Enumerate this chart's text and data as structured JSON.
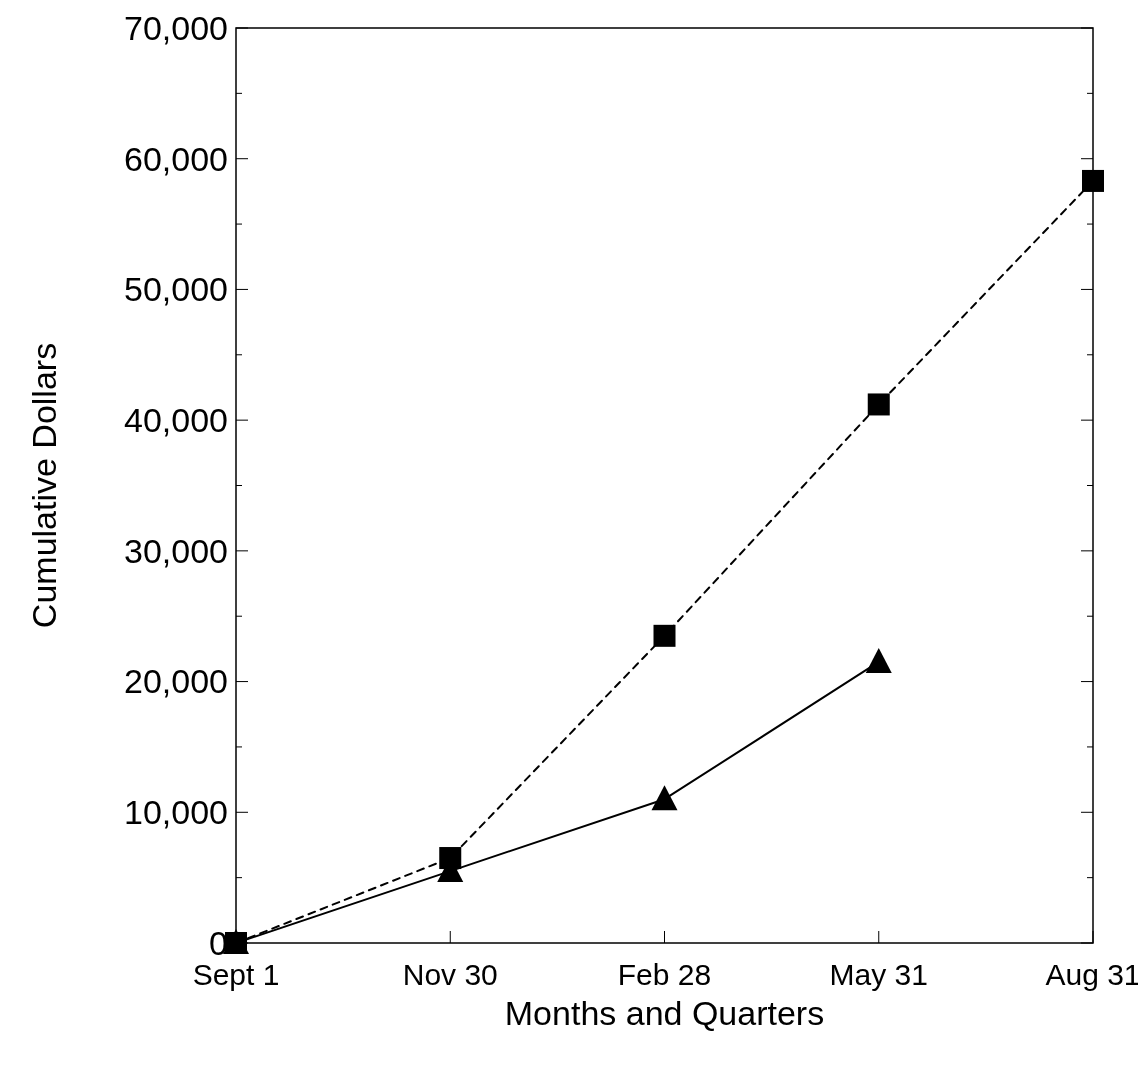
{
  "chart_data": {
    "type": "line",
    "xlabel": "Months and Quarters",
    "ylabel": "Cumulative Dollars",
    "categories": [
      "Sept 1",
      "Nov 30",
      "Feb 28",
      "May 31",
      "Aug 31"
    ],
    "series": [
      {
        "color": "#000000",
        "marker": "square",
        "line_style": "dashed",
        "values": [
          0,
          6500,
          23500,
          41200,
          58300
        ]
      },
      {
        "color": "#000000",
        "marker": "triangle",
        "line_style": "solid",
        "values": [
          0,
          5500,
          11000,
          21500,
          null
        ]
      }
    ],
    "ylim": [
      0,
      70000
    ],
    "yticks": [
      0,
      {
        "value": 5000,
        "label": null
      },
      {
        "value": 10000,
        "label": "10,000"
      },
      {
        "value": 15000,
        "label": null
      },
      {
        "value": 20000,
        "label": "20,000"
      },
      {
        "value": 25000,
        "label": null
      },
      {
        "value": 30000,
        "label": "30,000"
      },
      {
        "value": 35000,
        "label": null
      },
      {
        "value": 40000,
        "label": "40,000"
      },
      {
        "value": 45000,
        "label": null
      },
      {
        "value": 50000,
        "label": "50,000"
      },
      {
        "value": 55000,
        "label": null
      },
      {
        "value": 60000,
        "label": "60,000"
      },
      {
        "value": 65000,
        "label": null
      },
      {
        "value": 70000,
        "label": "70,000"
      }
    ],
    "grid": false
  }
}
